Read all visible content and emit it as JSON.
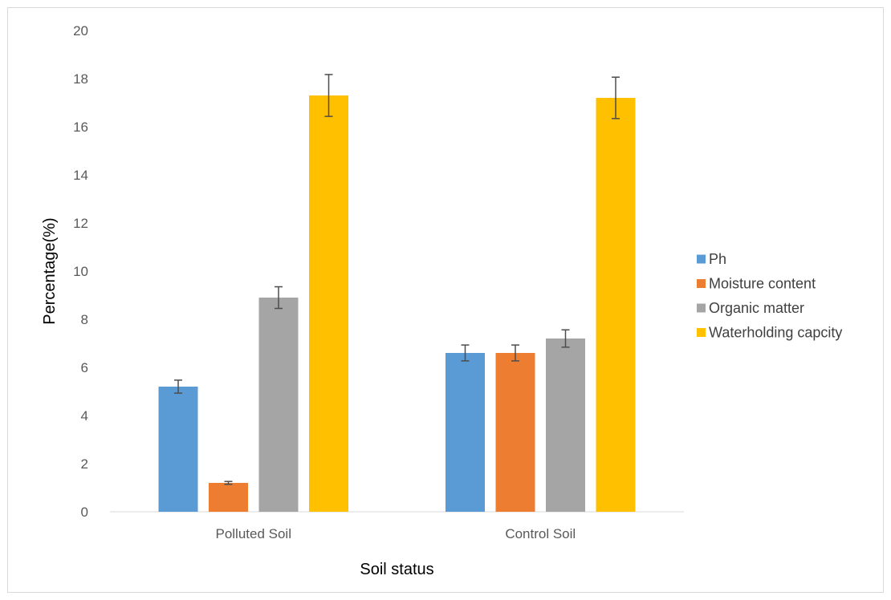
{
  "chart_data": {
    "type": "bar",
    "title": "",
    "xlabel": "Soil status",
    "ylabel": "Percentage(%)",
    "categories": [
      "Polluted Soil",
      "Control Soil"
    ],
    "ylim": [
      0,
      20
    ],
    "yticks": [
      0,
      2,
      4,
      6,
      8,
      10,
      12,
      14,
      16,
      18,
      20
    ],
    "grid": false,
    "legend": "right",
    "series": [
      {
        "name": "Ph",
        "color": "#5B9BD5",
        "values": [
          5.2,
          6.6
        ],
        "errors": [
          0.27,
          0.33
        ]
      },
      {
        "name": "Moisture content",
        "color": "#ED7D31",
        "values": [
          1.2,
          6.6
        ],
        "errors": [
          0.06,
          0.33
        ]
      },
      {
        "name": "Organic matter",
        "color": "#A5A5A5",
        "values": [
          8.9,
          7.2
        ],
        "errors": [
          0.45,
          0.36
        ]
      },
      {
        "name": "Waterholding capcity",
        "color": "#FFC000",
        "values": [
          17.3,
          17.2
        ],
        "errors": [
          0.87,
          0.86
        ]
      }
    ]
  }
}
